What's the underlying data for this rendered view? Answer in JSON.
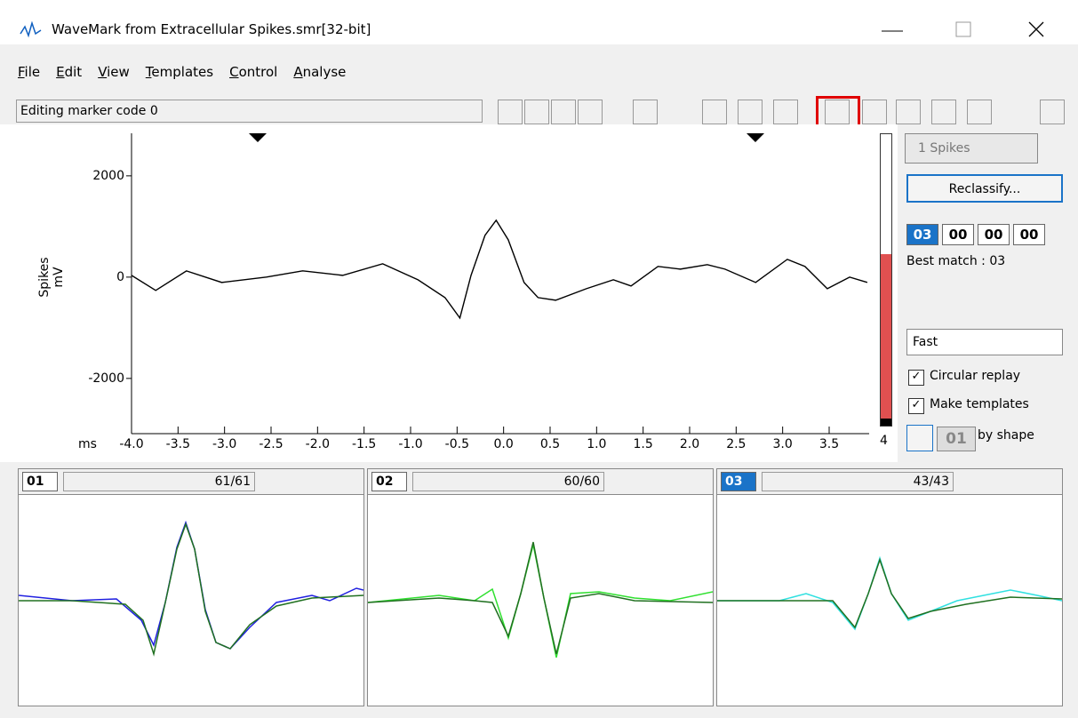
{
  "window": {
    "title": "WaveMark from Extracellular Spikes.smr[32-bit]"
  },
  "menu": [
    "File",
    "Edit",
    "View",
    "Templates",
    "Control",
    "Analyse"
  ],
  "status": "Editing marker code  0",
  "chart_data": {
    "type": "line",
    "ylabel": "Spikes",
    "yunit": "mV",
    "xlabel": "ms",
    "color": "#000000",
    "x": [
      -4.0,
      -3.74,
      -3.41,
      -3.03,
      -2.55,
      -2.16,
      -1.73,
      -1.3,
      -0.92,
      -0.63,
      -0.47,
      -0.35,
      -0.2,
      -0.08,
      0.05,
      0.22,
      0.37,
      0.56,
      0.89,
      1.18,
      1.37,
      1.66,
      1.9,
      2.19,
      2.38,
      2.71,
      3.05,
      3.24,
      3.48,
      3.72,
      3.91
    ],
    "values": [
      35,
      -263,
      123,
      -105,
      0,
      123,
      35,
      263,
      -53,
      -404,
      -807,
      35,
      825,
      1123,
      737,
      -105,
      -404,
      -456,
      -228,
      -53,
      -175,
      211,
      158,
      246,
      158,
      -105,
      351,
      211,
      -228,
      0,
      -105
    ],
    "xlim": [
      -4.0,
      3.93
    ],
    "ylim": [
      -2950,
      2840
    ],
    "yticks": [
      2000,
      0,
      -2000
    ],
    "xticks": [
      {
        "value": -4.0,
        "label": "-4.0"
      },
      -3.5,
      {
        "value": -3.0,
        "label": "-3.0"
      },
      -2.5,
      {
        "value": -2.0,
        "label": "-2.0"
      },
      -1.5,
      {
        "value": -1.0,
        "label": "-1.0"
      },
      -0.5,
      {
        "value": 0.0,
        "label": "0.0"
      },
      0.5,
      {
        "value": 1.0,
        "label": "1.0"
      },
      1.5,
      {
        "value": 2.0,
        "label": "2.0"
      },
      2.5,
      {
        "value": 3.0,
        "label": "3.0"
      },
      3.5
    ]
  },
  "side": {
    "spike_count": "1 Spikes",
    "reclassify": "Reclassify...",
    "codes": [
      "03",
      "00",
      "00",
      "00"
    ],
    "best_match": "Best match : 03",
    "speed": "Fast",
    "circular": "Circular replay",
    "make_templates": "Make templates",
    "code_button": "01",
    "by_shape": "by shape",
    "meter": "4"
  },
  "templates": [
    {
      "code": "01",
      "count": "61/61"
    },
    {
      "code": "02",
      "count": "60/60"
    },
    {
      "code": "03",
      "count": "43/43"
    }
  ]
}
